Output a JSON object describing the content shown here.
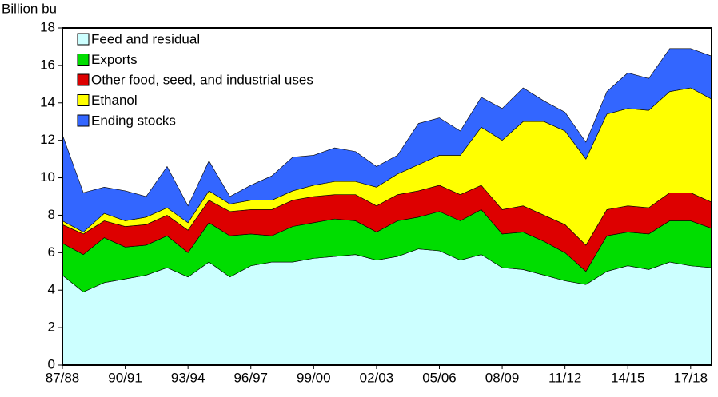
{
  "chart_data": {
    "type": "stacked_area",
    "y_label": "Billion bu",
    "categories": [
      "87/88",
      null,
      null,
      "90/91",
      null,
      null,
      "93/94",
      null,
      null,
      "96/97",
      null,
      null,
      "99/00",
      null,
      null,
      "02/03",
      null,
      null,
      "05/06",
      null,
      null,
      "08/09",
      null,
      null,
      "11/12",
      null,
      null,
      "14/15",
      null,
      null,
      "17/18",
      null
    ],
    "series": [
      {
        "name": "Feed and residual",
        "color": "#ccffff",
        "values": [
          4.8,
          3.9,
          4.4,
          4.6,
          4.8,
          5.2,
          4.7,
          5.5,
          4.7,
          5.3,
          5.5,
          5.5,
          5.7,
          5.8,
          5.9,
          5.6,
          5.8,
          6.2,
          6.1,
          5.6,
          5.9,
          5.2,
          5.1,
          4.8,
          4.5,
          4.3,
          5.0,
          5.3,
          5.1,
          5.5,
          5.3,
          5.2
        ]
      },
      {
        "name": "Exports",
        "color": "#00dd00",
        "values": [
          1.7,
          2.0,
          2.4,
          1.7,
          1.6,
          1.7,
          1.3,
          2.1,
          2.2,
          1.7,
          1.4,
          1.9,
          1.9,
          2.0,
          1.8,
          1.5,
          1.9,
          1.7,
          2.1,
          2.1,
          2.4,
          1.8,
          2.0,
          1.8,
          1.5,
          0.7,
          1.9,
          1.8,
          1.9,
          2.2,
          2.4,
          2.1
        ]
      },
      {
        "name": "Other food, seed, and industrial uses",
        "color": "#dd0000",
        "values": [
          1.0,
          1.1,
          0.9,
          1.1,
          1.1,
          1.1,
          1.2,
          1.2,
          1.3,
          1.3,
          1.4,
          1.4,
          1.4,
          1.3,
          1.4,
          1.4,
          1.4,
          1.4,
          1.4,
          1.4,
          1.3,
          1.3,
          1.4,
          1.4,
          1.5,
          1.4,
          1.4,
          1.4,
          1.4,
          1.5,
          1.5,
          1.4
        ]
      },
      {
        "name": "Ethanol",
        "color": "#ffff00",
        "values": [
          0.2,
          0.1,
          0.4,
          0.3,
          0.4,
          0.4,
          0.4,
          0.5,
          0.4,
          0.5,
          0.5,
          0.5,
          0.6,
          0.7,
          0.7,
          1.0,
          1.1,
          1.4,
          1.6,
          2.1,
          3.1,
          3.7,
          4.5,
          5.0,
          5.0,
          4.6,
          5.1,
          5.2,
          5.2,
          5.4,
          5.6,
          5.5
        ]
      },
      {
        "name": "Ending stocks",
        "color": "#3366ff",
        "values": [
          4.6,
          2.1,
          1.4,
          1.6,
          1.1,
          2.2,
          0.9,
          1.6,
          0.4,
          0.8,
          1.3,
          1.8,
          1.6,
          1.8,
          1.6,
          1.1,
          1.0,
          2.2,
          2.0,
          1.3,
          1.6,
          1.7,
          1.8,
          1.1,
          1.0,
          0.9,
          1.2,
          1.9,
          1.7,
          2.3,
          2.1,
          2.3
        ]
      }
    ],
    "ylim": [
      0,
      18
    ],
    "yticks": [
      0,
      2,
      4,
      6,
      8,
      10,
      12,
      14,
      16,
      18
    ],
    "legend": "upper left"
  }
}
